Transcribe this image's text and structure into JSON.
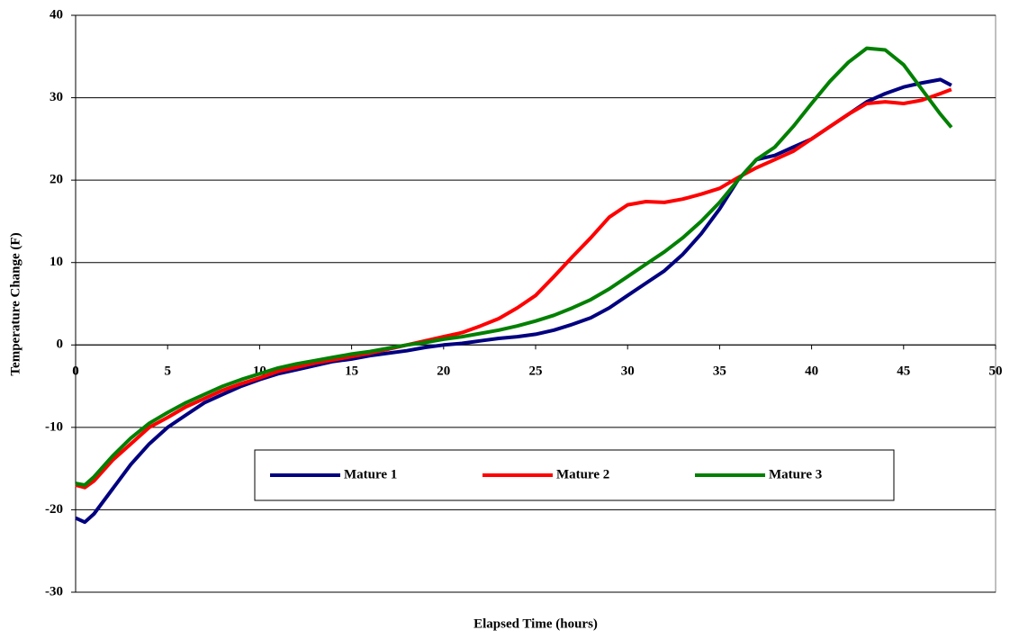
{
  "chart_data": {
    "type": "line",
    "xlabel": "Elapsed Time (hours)",
    "ylabel": "Temperature Change (F)",
    "x": [
      0,
      0.5,
      1,
      2,
      3,
      4,
      5,
      6,
      7,
      8,
      9,
      10,
      11,
      12,
      13,
      14,
      15,
      16,
      17,
      18,
      19,
      20,
      21,
      22,
      23,
      24,
      25,
      26,
      27,
      28,
      29,
      30,
      31,
      32,
      33,
      34,
      35,
      36,
      37,
      38,
      39,
      40,
      41,
      42,
      43,
      44,
      45,
      46,
      47,
      47.6
    ],
    "series": [
      {
        "name": "Mature 1",
        "color": "#000080",
        "values": [
          -21,
          -21.5,
          -20.5,
          -17.5,
          -14.5,
          -12,
          -10,
          -8.5,
          -7,
          -6,
          -5,
          -4.2,
          -3.5,
          -3,
          -2.5,
          -2,
          -1.7,
          -1.3,
          -1,
          -0.7,
          -0.3,
          0,
          0.2,
          0.5,
          0.8,
          1,
          1.3,
          1.8,
          2.5,
          3.3,
          4.5,
          6,
          7.5,
          9,
          11,
          13.5,
          16.5,
          20,
          22.5,
          23,
          24,
          25,
          26.5,
          28,
          29.5,
          30.5,
          31.3,
          31.8,
          32.2,
          31.5
        ]
      },
      {
        "name": "Mature 2",
        "color": "#ff0000",
        "values": [
          -17,
          -17.3,
          -16.5,
          -14,
          -12,
          -10,
          -8.8,
          -7.5,
          -6.5,
          -5.5,
          -4.7,
          -4,
          -3.2,
          -2.7,
          -2.2,
          -1.8,
          -1.4,
          -1,
          -0.5,
          0,
          0.5,
          1,
          1.5,
          2.3,
          3.2,
          4.5,
          6,
          8.3,
          10.7,
          13,
          15.5,
          17,
          17.4,
          17.3,
          17.7,
          18.3,
          19,
          20.3,
          21.5,
          22.5,
          23.5,
          25,
          26.5,
          28,
          29.3,
          29.5,
          29.3,
          29.7,
          30.5,
          31
        ]
      },
      {
        "name": "Mature 3",
        "color": "#008000",
        "values": [
          -16.8,
          -17,
          -16,
          -13.5,
          -11.3,
          -9.5,
          -8.2,
          -7,
          -6,
          -5,
          -4.2,
          -3.5,
          -2.8,
          -2.3,
          -1.9,
          -1.5,
          -1.1,
          -0.8,
          -0.4,
          0,
          0.3,
          0.7,
          1,
          1.4,
          1.8,
          2.3,
          2.9,
          3.6,
          4.5,
          5.5,
          6.8,
          8.3,
          9.8,
          11.3,
          13,
          15,
          17.3,
          20,
          22.5,
          24,
          26.5,
          29.3,
          32,
          34.3,
          36,
          35.8,
          34,
          31,
          28,
          26.4
        ]
      }
    ],
    "xlim": [
      0,
      50
    ],
    "xticks": [
      0,
      5,
      10,
      15,
      20,
      25,
      30,
      35,
      40,
      45,
      50
    ],
    "ylim": [
      -30,
      40
    ],
    "yticks": [
      -30,
      -20,
      -10,
      0,
      10,
      20,
      30,
      40
    ],
    "grid": true
  }
}
